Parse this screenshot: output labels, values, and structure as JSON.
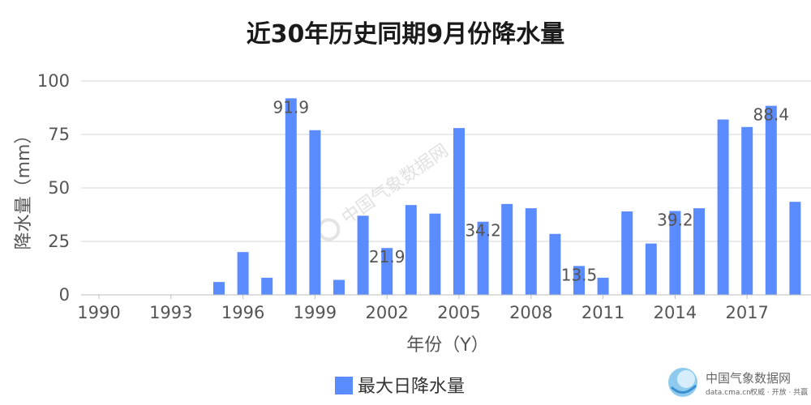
{
  "chart_data": {
    "type": "bar",
    "title": "近30年历史同期9月份降水量",
    "xlabel": "年份（Y）",
    "ylabel": "降水量（mm）",
    "ylim": [
      0,
      100
    ],
    "yticks": [
      0,
      25,
      50,
      75,
      100
    ],
    "grid": true,
    "legend_position": "bottom",
    "categories": [
      1990,
      1991,
      1992,
      1993,
      1994,
      1995,
      1996,
      1997,
      1998,
      1999,
      2000,
      2001,
      2002,
      2003,
      2004,
      2005,
      2006,
      2007,
      2008,
      2009,
      2010,
      2011,
      2012,
      2013,
      2014,
      2015,
      2016,
      2017,
      2018,
      2019
    ],
    "xtick_labels": [
      "1990",
      "1993",
      "1996",
      "1999",
      "2002",
      "2005",
      "2008",
      "2011",
      "2014",
      "2017"
    ],
    "series": [
      {
        "name": "最大日降水量",
        "color": "#5B8CFF",
        "values": [
          0,
          0,
          0,
          0,
          0,
          6,
          20,
          8,
          91.9,
          77,
          7,
          37,
          21.9,
          42,
          38,
          78,
          34.2,
          42.5,
          40.5,
          28.5,
          13.5,
          8,
          39,
          24,
          39.2,
          40.5,
          82,
          78.5,
          88.4,
          43.5
        ]
      }
    ],
    "data_labels": [
      {
        "x": 1998,
        "text": "91.9"
      },
      {
        "x": 2002,
        "text": "21.9"
      },
      {
        "x": 2006,
        "text": "34.2"
      },
      {
        "x": 2010,
        "text": "13.5"
      },
      {
        "x": 2014,
        "text": "39.2"
      },
      {
        "x": 2018,
        "text": "88.4"
      }
    ]
  },
  "watermark": "中国气象数据网",
  "logo": {
    "name": "中国气象数据网",
    "url": "data.cma.cn",
    "tagline": "权威 · 开放 · 共赢",
    "icon": "cma-logo-icon"
  }
}
